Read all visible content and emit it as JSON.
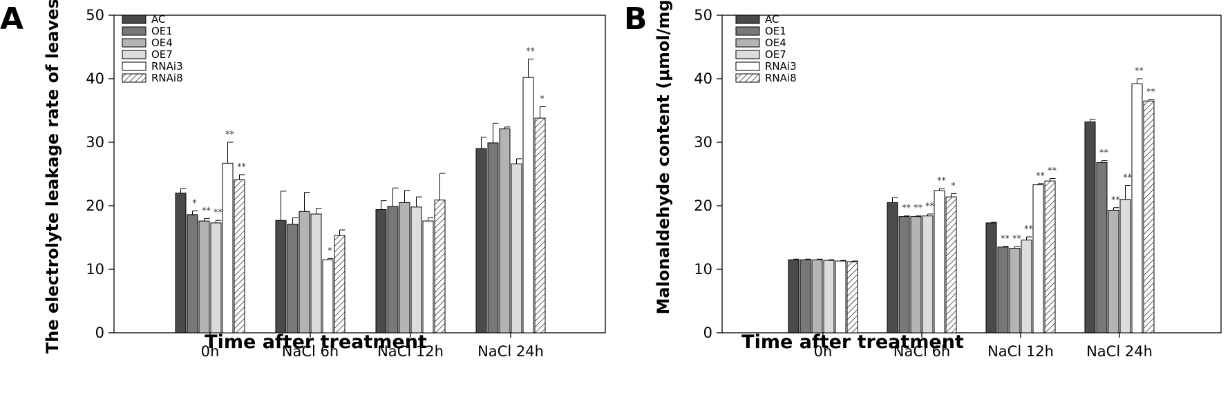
{
  "chart_data": [
    {
      "panel_label": "A",
      "type": "bar",
      "xlabel": "Time after treatment",
      "ylabel": "The electrolyte leakage rate of leaves (%)",
      "ylim": [
        0,
        50
      ],
      "yticks": [
        0,
        10,
        20,
        30,
        40,
        50
      ],
      "grid": false,
      "legend_position": "top-left",
      "categories": [
        "0h",
        "NaCl 6h",
        "NaCl 12h",
        "NaCl 24h"
      ],
      "series": [
        {
          "name": "AC",
          "fill": "#4a4a4a",
          "values": [
            22.0,
            17.7,
            19.4,
            29.0
          ],
          "errors": [
            0.7,
            4.6,
            1.4,
            1.8
          ],
          "significance": [
            "",
            "",
            "",
            ""
          ]
        },
        {
          "name": "OE1",
          "fill": "#787878",
          "values": [
            18.6,
            17.1,
            19.9,
            29.9
          ],
          "errors": [
            0.6,
            1.0,
            2.9,
            3.1
          ],
          "significance": [
            "*",
            "",
            "",
            ""
          ]
        },
        {
          "name": "OE4",
          "fill": "#b4b4b4",
          "values": [
            17.6,
            19.1,
            20.5,
            32.1
          ],
          "errors": [
            0.4,
            3.0,
            1.9,
            0.3
          ],
          "significance": [
            "**",
            "",
            "",
            ""
          ]
        },
        {
          "name": "OE7",
          "fill": "#dcdcdc",
          "values": [
            17.3,
            18.7,
            19.8,
            26.6
          ],
          "errors": [
            0.4,
            0.9,
            1.6,
            0.8
          ],
          "significance": [
            "**",
            "",
            "",
            ""
          ]
        },
        {
          "name": "RNAi3",
          "fill": "#ffffff",
          "values": [
            26.7,
            11.5,
            17.6,
            40.2
          ],
          "errors": [
            3.3,
            0.2,
            0.5,
            2.9
          ],
          "significance": [
            "**",
            "*",
            "",
            "**"
          ]
        },
        {
          "name": "RNAi8",
          "fill": "hatch",
          "values": [
            24.1,
            15.3,
            20.9,
            33.8
          ],
          "errors": [
            0.8,
            0.9,
            4.2,
            1.8
          ],
          "significance": [
            "**",
            "",
            "",
            "*"
          ]
        }
      ]
    },
    {
      "panel_label": "B",
      "type": "bar",
      "xlabel": "Time after treatment",
      "ylabel": "Malonaldehyde content (μmol/mg)",
      "ylim": [
        0,
        50
      ],
      "yticks": [
        0,
        10,
        20,
        30,
        40,
        50
      ],
      "grid": false,
      "legend_position": "top-left",
      "categories": [
        "0h",
        "NaCl 6h",
        "NaCl 12h",
        "NaCl 24h"
      ],
      "series": [
        {
          "name": "AC",
          "fill": "#4a4a4a",
          "values": [
            11.5,
            20.5,
            17.3,
            33.2
          ],
          "errors": [
            0.1,
            0.8,
            0.1,
            0.4
          ],
          "significance": [
            "",
            "",
            "",
            ""
          ]
        },
        {
          "name": "OE1",
          "fill": "#787878",
          "values": [
            11.5,
            18.3,
            13.5,
            26.8
          ],
          "errors": [
            0.1,
            0.1,
            0.1,
            0.3
          ],
          "significance": [
            "",
            "**",
            "**",
            "**"
          ]
        },
        {
          "name": "OE4",
          "fill": "#b4b4b4",
          "values": [
            11.5,
            18.3,
            13.3,
            19.3
          ],
          "errors": [
            0.1,
            0.1,
            0.3,
            0.4
          ],
          "significance": [
            "",
            "**",
            "**",
            "**"
          ]
        },
        {
          "name": "OE7",
          "fill": "#dcdcdc",
          "values": [
            11.4,
            18.4,
            14.6,
            21.0
          ],
          "errors": [
            0.1,
            0.3,
            0.5,
            2.2
          ],
          "significance": [
            "",
            "**",
            "**",
            "**"
          ]
        },
        {
          "name": "RNAi3",
          "fill": "#ffffff",
          "values": [
            11.3,
            22.4,
            23.3,
            39.2
          ],
          "errors": [
            0.1,
            0.3,
            0.2,
            0.8
          ],
          "significance": [
            "",
            "**",
            "**",
            "**"
          ]
        },
        {
          "name": "RNAi8",
          "fill": "hatch",
          "values": [
            11.2,
            21.4,
            23.9,
            36.5
          ],
          "errors": [
            0.1,
            0.5,
            0.4,
            0.2
          ],
          "significance": [
            "",
            "*",
            "**",
            "**"
          ]
        }
      ]
    }
  ]
}
